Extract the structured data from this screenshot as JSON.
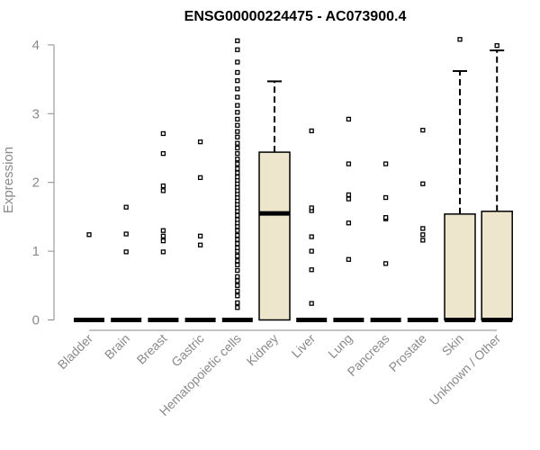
{
  "chart_data": {
    "type": "boxplot",
    "title": "ENSG00000224475 - AC073900.4",
    "xlabel": "",
    "ylabel": "Expression",
    "ylim": [
      0,
      4.1
    ],
    "yticks": [
      0,
      1,
      2,
      3,
      4
    ],
    "grid": false,
    "colors": {
      "box_fill": "#ede6cc",
      "stroke": "#000000",
      "axis": "#8a8a8a"
    },
    "categories": [
      "Bladder",
      "Brain",
      "Breast",
      "Gastric",
      "Hematopoietic cells",
      "Kidney",
      "Liver",
      "Lung",
      "Pancreas",
      "Prostate",
      "Skin",
      "Unknown / Other"
    ],
    "boxes": [
      {
        "category": "Bladder",
        "q1": 0,
        "median": 0,
        "q3": 0,
        "whisker_low": 0,
        "whisker_high": 0,
        "outliers": [
          1.24
        ]
      },
      {
        "category": "Brain",
        "q1": 0,
        "median": 0,
        "q3": 0,
        "whisker_low": 0,
        "whisker_high": 0,
        "outliers": [
          0.99,
          1.25,
          1.64
        ]
      },
      {
        "category": "Breast",
        "q1": 0,
        "median": 0,
        "q3": 0,
        "whisker_low": 0,
        "whisker_high": 0,
        "outliers": [
          0.99,
          1.15,
          1.22,
          1.3,
          1.88,
          1.95,
          2.42,
          2.71
        ]
      },
      {
        "category": "Gastric",
        "q1": 0,
        "median": 0,
        "q3": 0,
        "whisker_low": 0,
        "whisker_high": 0,
        "outliers": [
          1.09,
          1.22,
          2.07,
          2.59
        ]
      },
      {
        "category": "Hematopoietic cells",
        "q1": 0,
        "median": 0,
        "q3": 0,
        "whisker_low": 0,
        "whisker_high": 0,
        "outliers": [
          0.18,
          0.25,
          0.35,
          0.42,
          0.5,
          0.57,
          0.63,
          0.72,
          0.8,
          0.86,
          0.93,
          1.0,
          1.05,
          1.11,
          1.17,
          1.23,
          1.3,
          1.36,
          1.41,
          1.46,
          1.52,
          1.58,
          1.63,
          1.68,
          1.73,
          1.78,
          1.83,
          1.88,
          1.93,
          1.98,
          2.03,
          2.08,
          2.14,
          2.2,
          2.27,
          2.34,
          2.42,
          2.5,
          2.57,
          2.66,
          2.74,
          2.83,
          2.92,
          3.02,
          3.12,
          3.24,
          3.36,
          3.48,
          3.6,
          3.75,
          3.93,
          4.06
        ]
      },
      {
        "category": "Kidney",
        "q1": 0,
        "median": 1.55,
        "q3": 2.44,
        "whisker_low": 0,
        "whisker_high": 3.47,
        "outliers": []
      },
      {
        "category": "Liver",
        "q1": 0,
        "median": 0,
        "q3": 0,
        "whisker_low": 0,
        "whisker_high": 0,
        "outliers": [
          0.24,
          0.73,
          1.0,
          1.21,
          1.59,
          1.63,
          2.75
        ]
      },
      {
        "category": "Lung",
        "q1": 0,
        "median": 0,
        "q3": 0,
        "whisker_low": 0,
        "whisker_high": 0,
        "outliers": [
          0.88,
          1.41,
          1.76,
          1.82,
          2.27,
          2.92
        ]
      },
      {
        "category": "Pancreas",
        "q1": 0,
        "median": 0,
        "q3": 0,
        "whisker_low": 0,
        "whisker_high": 0,
        "outliers": [
          0.82,
          1.47,
          1.49,
          1.78,
          2.27
        ]
      },
      {
        "category": "Prostate",
        "q1": 0,
        "median": 0,
        "q3": 0,
        "whisker_low": 0,
        "whisker_high": 0,
        "outliers": [
          1.16,
          1.24,
          1.33,
          1.98,
          2.76
        ]
      },
      {
        "category": "Skin",
        "q1": 0,
        "median": 0,
        "q3": 1.54,
        "whisker_low": 0,
        "whisker_high": 3.62,
        "outliers": [
          4.08
        ]
      },
      {
        "category": "Unknown / Other",
        "q1": 0,
        "median": 0,
        "q3": 1.58,
        "whisker_low": 0,
        "whisker_high": 3.92,
        "outliers": [
          3.99
        ]
      }
    ]
  }
}
